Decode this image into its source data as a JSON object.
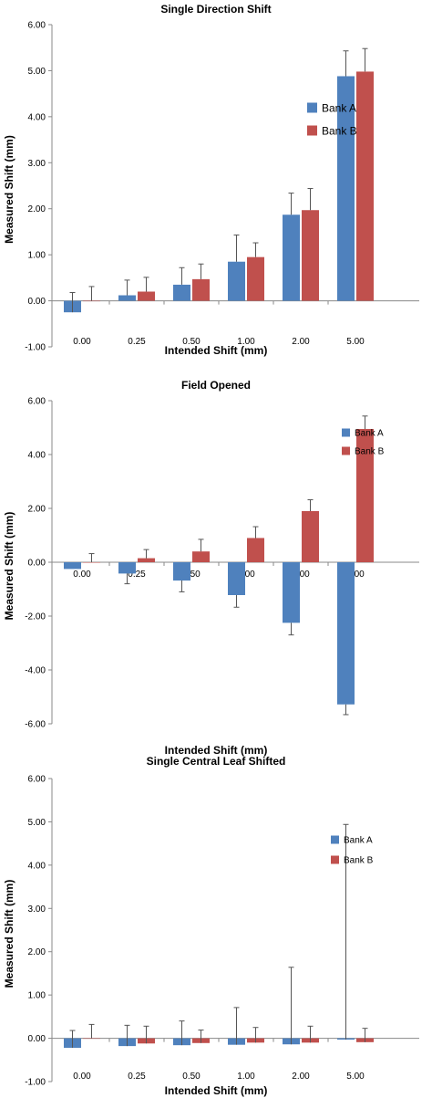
{
  "colors": {
    "bank_a": "#4F81BD",
    "bank_b": "#C0504D",
    "error_bar": "#555555",
    "axis": "#888888"
  },
  "chart_data": [
    {
      "type": "bar",
      "title": "Single Direction Shift",
      "xlabel": "Intended Shift (mm)",
      "ylabel": "Measured Shift (mm)",
      "categories": [
        "0.00",
        "0.25",
        "0.50",
        "1.00",
        "2.00",
        "5.00"
      ],
      "y_ticks": [
        "6.00",
        "5.00",
        "4.00",
        "3.00",
        "2.00",
        "1.00",
        "0.00",
        "-1.00"
      ],
      "ylim": [
        -1,
        6
      ],
      "x_labels_position": "bottom",
      "legend_position": "top-right",
      "grid": false,
      "series": [
        {
          "name": "Bank A",
          "values": [
            -0.25,
            0.12,
            0.35,
            0.85,
            1.87,
            4.88
          ],
          "error": [
            0.43,
            0.33,
            0.37,
            0.58,
            0.47,
            0.55
          ]
        },
        {
          "name": "Bank B",
          "values": [
            0.0,
            0.2,
            0.47,
            0.95,
            1.97,
            4.98
          ],
          "error": [
            0.31,
            0.31,
            0.33,
            0.31,
            0.47,
            0.5
          ]
        }
      ]
    },
    {
      "type": "bar",
      "title": "Field Opened",
      "xlabel": "Intended Shift (mm)",
      "ylabel": "Measured Shift (mm)",
      "categories": [
        "0.00",
        "0.25",
        "0.50",
        "1.00",
        "2.00",
        "5.00"
      ],
      "y_ticks": [
        "6.00",
        "4.00",
        "2.00",
        "0.00",
        "-2.00",
        "-4.00",
        "-6.00"
      ],
      "ylim": [
        -6,
        6
      ],
      "x_labels_position": "axis",
      "legend_position": "top-right",
      "grid": false,
      "series": [
        {
          "name": "Bank A",
          "values": [
            -0.25,
            -0.42,
            -0.68,
            -1.22,
            -2.25,
            -5.28
          ],
          "error": [
            0.0,
            0.38,
            0.42,
            0.45,
            0.45,
            0.38
          ]
        },
        {
          "name": "Bank B",
          "values": [
            0.0,
            0.15,
            0.4,
            0.9,
            1.9,
            4.95
          ],
          "error": [
            0.32,
            0.32,
            0.45,
            0.42,
            0.42,
            0.48
          ]
        }
      ]
    },
    {
      "type": "bar",
      "title": "Single Central Leaf Shifted",
      "xlabel": "Intended Shift (mm)",
      "ylabel": "Measured Shift (mm)",
      "categories": [
        "0.00",
        "0.25",
        "0.50",
        "1.00",
        "2.00",
        "5.00"
      ],
      "y_ticks": [
        "6.00",
        "5.00",
        "4.00",
        "3.00",
        "2.00",
        "1.00",
        "0.00",
        "-1.00"
      ],
      "ylim": [
        -1,
        6
      ],
      "x_labels_position": "bottom",
      "legend_position": "right",
      "grid": false,
      "series": [
        {
          "name": "Bank A",
          "values": [
            -0.22,
            -0.18,
            -0.16,
            -0.15,
            -0.14,
            -0.03
          ],
          "error": [
            0.4,
            0.48,
            0.56,
            0.86,
            1.78,
            4.97
          ]
        },
        {
          "name": "Bank B",
          "values": [
            0.0,
            -0.12,
            -0.11,
            -0.1,
            -0.1,
            -0.09
          ],
          "error": [
            0.32,
            0.4,
            0.3,
            0.35,
            0.38,
            0.32
          ]
        }
      ]
    }
  ]
}
